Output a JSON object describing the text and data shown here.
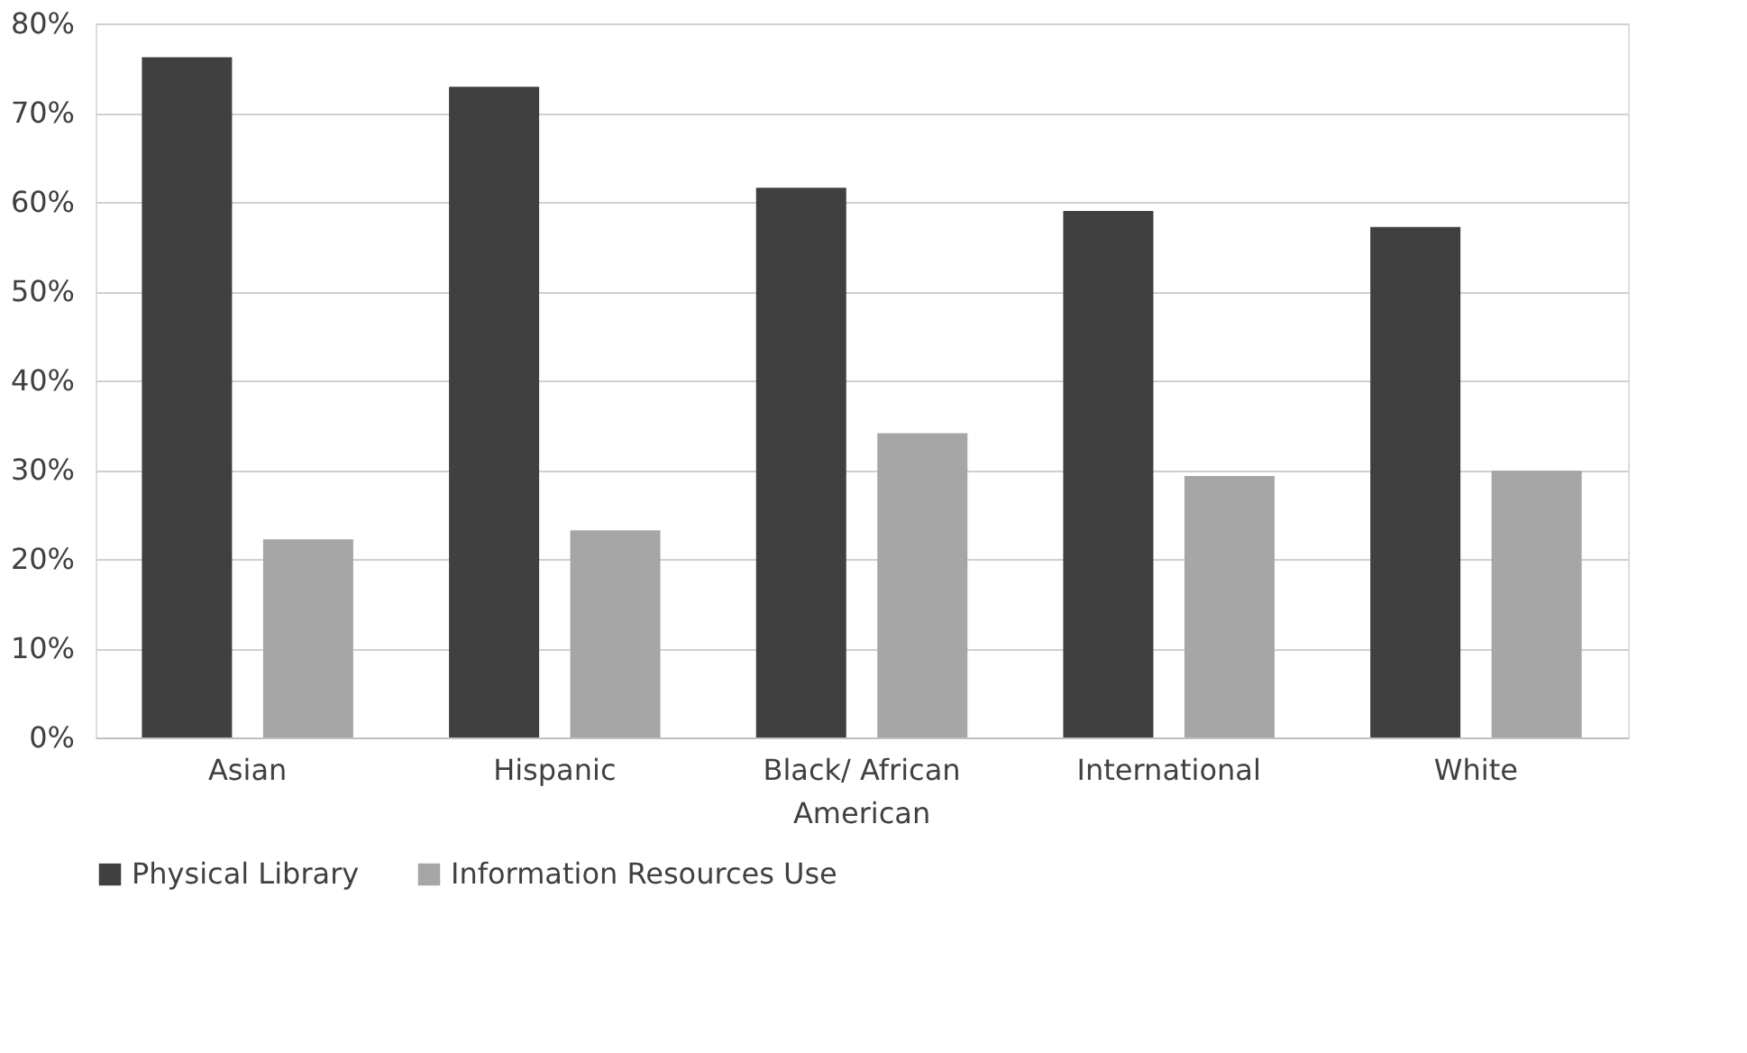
{
  "chart_data": {
    "type": "bar",
    "categories": [
      "Asian",
      "Hispanic",
      "Black/ African American",
      "International",
      "White"
    ],
    "series": [
      {
        "name": "Physical Library",
        "color": "#404040",
        "values": [
          76.2,
          72.9,
          61.6,
          59.0,
          57.2
        ]
      },
      {
        "name": "Information Resources Use",
        "color": "#a6a6a6",
        "values": [
          22.2,
          23.2,
          34.1,
          29.3,
          29.9
        ]
      }
    ],
    "ylim": [
      0,
      80
    ],
    "yticks": [
      {
        "value": 0,
        "label": "0%"
      },
      {
        "value": 10,
        "label": "10%"
      },
      {
        "value": 20,
        "label": "20%"
      },
      {
        "value": 30,
        "label": "30%"
      },
      {
        "value": 40,
        "label": "40%"
      },
      {
        "value": 50,
        "label": "50%"
      },
      {
        "value": 60,
        "label": "60%"
      },
      {
        "value": 70,
        "label": "70%"
      },
      {
        "value": 80,
        "label": "80%"
      }
    ],
    "grid": "y",
    "legend": "bottom"
  }
}
